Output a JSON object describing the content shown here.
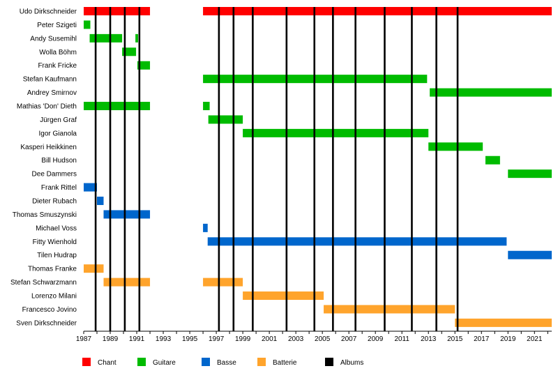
{
  "chart_data": {
    "type": "timeline",
    "xlim": [
      1987,
      2022.3
    ],
    "x_ticks": [
      1987,
      1989,
      1991,
      1993,
      1995,
      1997,
      1999,
      2001,
      2003,
      2005,
      2007,
      2009,
      2011,
      2013,
      2015,
      2017,
      2019,
      2021
    ],
    "x_tick_labels": [
      "1987",
      "1989",
      "1991",
      "1993",
      "1995",
      "1997",
      "1999",
      "2001",
      "2003",
      "2005",
      "2007",
      "2009",
      "2011",
      "2013",
      "2015",
      "2017",
      "2019",
      "2021"
    ],
    "legend_placement": "bottom",
    "roles": [
      {
        "key": "chant",
        "label": "Chant",
        "color": "#ff0000"
      },
      {
        "key": "guitare",
        "label": "Guitare",
        "color": "#00bb00"
      },
      {
        "key": "basse",
        "label": "Basse",
        "color": "#0066cc"
      },
      {
        "key": "batterie",
        "label": "Batterie",
        "color": "#ffa42c"
      },
      {
        "key": "albums",
        "label": "Albums",
        "color": "#000000"
      }
    ],
    "albums": [
      1987.9,
      1989.0,
      1990.1,
      1991.2,
      1997.2,
      1998.3,
      1999.75,
      2002.3,
      2004.4,
      2005.8,
      2007.5,
      2009.7,
      2011.75,
      2013.6,
      2015.2
    ],
    "members": [
      {
        "name": "Udo Dirkschneider",
        "periods": [
          {
            "role": "chant",
            "start": 1987.0,
            "end": 1992.0
          },
          {
            "role": "chant",
            "start": 1996.0,
            "end": 2022.3
          }
        ]
      },
      {
        "name": "Peter Szigeti",
        "periods": [
          {
            "role": "guitare",
            "start": 1987.0,
            "end": 1987.5
          }
        ]
      },
      {
        "name": "Andy Susemihl",
        "periods": [
          {
            "role": "guitare",
            "start": 1987.45,
            "end": 1989.9
          },
          {
            "role": "guitare",
            "start": 1990.9,
            "end": 1991.1
          }
        ]
      },
      {
        "name": "Wolla Böhm",
        "periods": [
          {
            "role": "guitare",
            "start": 1989.9,
            "end": 1990.95
          }
        ]
      },
      {
        "name": "Frank Fricke",
        "periods": [
          {
            "role": "guitare",
            "start": 1991.05,
            "end": 1992.0
          }
        ]
      },
      {
        "name": "Stefan Kaufmann",
        "periods": [
          {
            "role": "guitare",
            "start": 1996.0,
            "end": 2012.9
          }
        ]
      },
      {
        "name": "Andrey Smirnov",
        "periods": [
          {
            "role": "guitare",
            "start": 2013.1,
            "end": 2022.3
          }
        ]
      },
      {
        "name": "Mathias 'Don' Dieth",
        "periods": [
          {
            "role": "guitare",
            "start": 1987.0,
            "end": 1992.0
          },
          {
            "role": "guitare",
            "start": 1996.0,
            "end": 1996.5
          }
        ]
      },
      {
        "name": "Jürgen Graf",
        "periods": [
          {
            "role": "guitare",
            "start": 1996.4,
            "end": 1999.0
          }
        ]
      },
      {
        "name": "Igor Gianola",
        "periods": [
          {
            "role": "guitare",
            "start": 1999.0,
            "end": 2013.0
          }
        ]
      },
      {
        "name": "Kasperi Heikkinen",
        "periods": [
          {
            "role": "guitare",
            "start": 2013.0,
            "end": 2017.1
          }
        ]
      },
      {
        "name": "Bill Hudson",
        "periods": [
          {
            "role": "guitare",
            "start": 2017.3,
            "end": 2018.4
          }
        ]
      },
      {
        "name": "Dee Dammers",
        "periods": [
          {
            "role": "guitare",
            "start": 2019.0,
            "end": 2022.3
          }
        ]
      },
      {
        "name": "Frank Rittel",
        "periods": [
          {
            "role": "basse",
            "start": 1987.0,
            "end": 1988.0
          }
        ]
      },
      {
        "name": "Dieter Rubach",
        "periods": [
          {
            "role": "basse",
            "start": 1988.0,
            "end": 1988.5
          }
        ]
      },
      {
        "name": "Thomas Smuszynski",
        "periods": [
          {
            "role": "basse",
            "start": 1988.5,
            "end": 1992.0
          }
        ]
      },
      {
        "name": "Michael Voss",
        "periods": [
          {
            "role": "basse",
            "start": 1996.0,
            "end": 1996.35
          }
        ]
      },
      {
        "name": "Fitty Wienhold",
        "periods": [
          {
            "role": "basse",
            "start": 1996.35,
            "end": 2018.9
          }
        ]
      },
      {
        "name": "Tilen Hudrap",
        "periods": [
          {
            "role": "basse",
            "start": 2019.0,
            "end": 2022.3
          }
        ]
      },
      {
        "name": "Thomas Franke",
        "periods": [
          {
            "role": "batterie",
            "start": 1987.0,
            "end": 1988.5
          }
        ]
      },
      {
        "name": "Stefan Schwarzmann",
        "periods": [
          {
            "role": "batterie",
            "start": 1988.5,
            "end": 1992.0
          },
          {
            "role": "batterie",
            "start": 1996.0,
            "end": 1999.0
          }
        ]
      },
      {
        "name": "Lorenzo Milani",
        "periods": [
          {
            "role": "batterie",
            "start": 1999.0,
            "end": 2005.1
          }
        ]
      },
      {
        "name": "Francesco Jovino",
        "periods": [
          {
            "role": "batterie",
            "start": 2005.1,
            "end": 2015.0
          }
        ]
      },
      {
        "name": "Sven Dirkschneider",
        "periods": [
          {
            "role": "batterie",
            "start": 2015.0,
            "end": 2022.3
          }
        ]
      }
    ]
  }
}
